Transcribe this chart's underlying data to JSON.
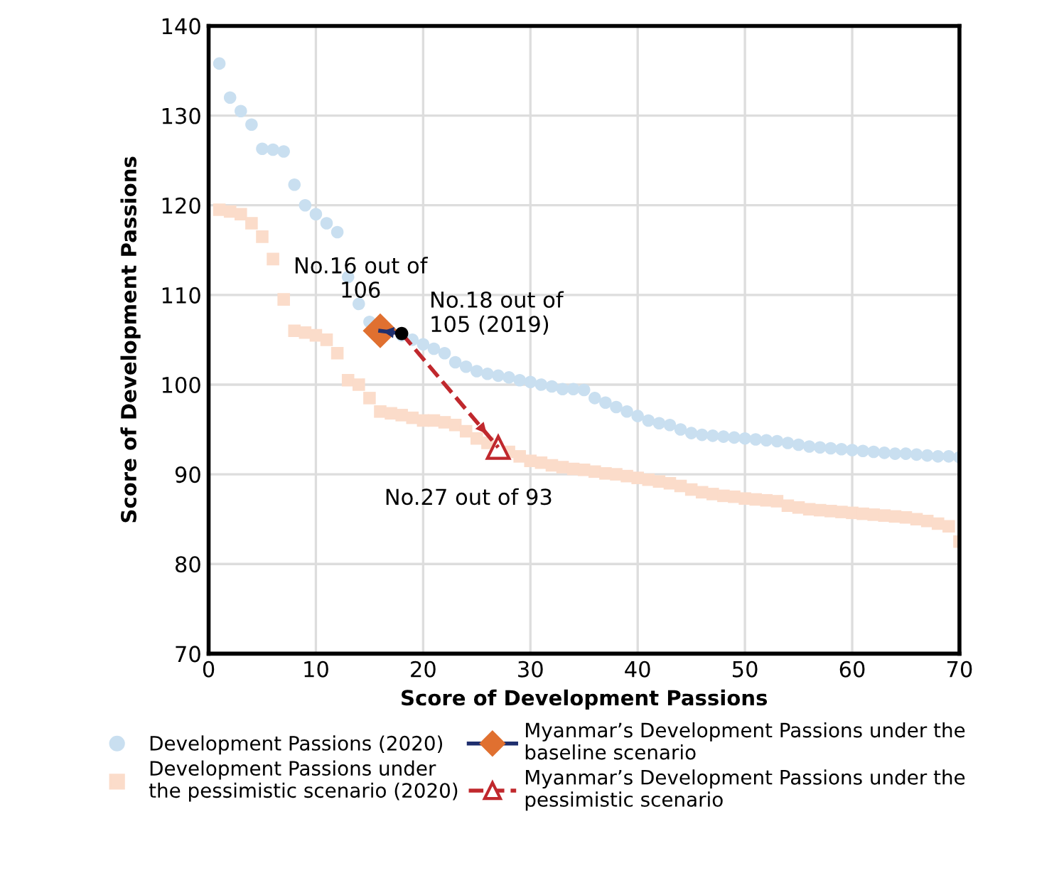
{
  "chart_data": {
    "type": "scatter",
    "xlabel": "Score of Development Passions",
    "ylabel": "Score of Development Passions",
    "xlim": [
      0,
      70
    ],
    "xticks": [
      0,
      10,
      20,
      30,
      40,
      50,
      60,
      70
    ],
    "ylim": [
      70,
      140
    ],
    "yticks": [
      70,
      80,
      90,
      100,
      110,
      120,
      130,
      140
    ],
    "grid": true,
    "legend": "bottom",
    "series": [
      {
        "name": "Development Passions (2020)",
        "marker": "circle",
        "color": "#c9dff0",
        "x": [
          1,
          2,
          3,
          4,
          5,
          6,
          7,
          8,
          9,
          10,
          11,
          12,
          13,
          14,
          15,
          16,
          17,
          18,
          19,
          20,
          21,
          22,
          23,
          24,
          25,
          26,
          27,
          28,
          29,
          30,
          31,
          32,
          33,
          34,
          35,
          36,
          37,
          38,
          39,
          40,
          41,
          42,
          43,
          44,
          45,
          46,
          47,
          48,
          49,
          50,
          51,
          52,
          53,
          54,
          55,
          56,
          57,
          58,
          59,
          60,
          61,
          62,
          63,
          64,
          65,
          66,
          67,
          68,
          69,
          70
        ],
        "values": [
          135.8,
          132,
          130.5,
          129,
          126.3,
          126.2,
          126,
          122.3,
          120,
          119,
          118,
          117,
          112,
          109,
          107,
          null,
          null,
          105.5,
          105,
          104.5,
          104,
          103.5,
          102.5,
          102,
          101.5,
          101.2,
          101,
          100.8,
          100.5,
          100.3,
          100,
          99.8,
          99.5,
          99.5,
          99.4,
          98.5,
          98,
          97.5,
          97,
          96.5,
          96,
          95.7,
          95.5,
          95,
          94.6,
          94.4,
          94.3,
          94.2,
          94.1,
          94,
          93.9,
          93.8,
          93.7,
          93.5,
          93.3,
          93.1,
          93,
          92.9,
          92.8,
          92.7,
          92.6,
          92.5,
          92.4,
          92.3,
          92.3,
          92.2,
          92.1,
          92,
          92,
          91.9
        ]
      },
      {
        "name": "Development Passions under\nthe pessimistic scenario (2020)",
        "marker": "square",
        "color": "#fbdcca",
        "x": [
          1,
          2,
          3,
          4,
          5,
          6,
          7,
          8,
          9,
          10,
          11,
          12,
          13,
          14,
          15,
          16,
          17,
          18,
          19,
          20,
          21,
          22,
          23,
          24,
          25,
          26,
          27,
          28,
          29,
          30,
          31,
          32,
          33,
          34,
          35,
          36,
          37,
          38,
          39,
          40,
          41,
          42,
          43,
          44,
          45,
          46,
          47,
          48,
          49,
          50,
          51,
          52,
          53,
          54,
          55,
          56,
          57,
          58,
          59,
          60,
          61,
          62,
          63,
          64,
          65,
          66,
          67,
          68,
          69,
          70
        ],
        "values": [
          119.5,
          119.3,
          119,
          118,
          116.5,
          114,
          109.5,
          106,
          105.8,
          105.5,
          105,
          103.5,
          100.5,
          100,
          98.5,
          97,
          96.8,
          96.6,
          96.3,
          96,
          96,
          95.8,
          95.5,
          94.8,
          94,
          93.5,
          null,
          92.5,
          92,
          91.5,
          91.3,
          91,
          90.8,
          90.6,
          90.5,
          90.3,
          90.1,
          90,
          89.8,
          89.6,
          89.4,
          89.2,
          89,
          88.7,
          88.3,
          88,
          87.8,
          87.6,
          87.5,
          87.3,
          87.2,
          87.1,
          87,
          86.5,
          86.3,
          86.1,
          86,
          85.9,
          85.8,
          85.7,
          85.6,
          85.5,
          85.4,
          85.3,
          85.2,
          85,
          84.8,
          84.5,
          84.2,
          82.5
        ]
      },
      {
        "name": "Myanmar’s Development Passions under the\nbaseline scenario",
        "type": "line",
        "marker": "diamond",
        "line_style": "solid",
        "color": "#1f2f6e",
        "x": [
          18,
          16
        ],
        "values": [
          105.7,
          106
        ]
      },
      {
        "name": "Myanmar’s Development Passions under the\npessimistic scenario",
        "type": "line",
        "marker": "triangle",
        "line_style": "dashed",
        "color": "#c0282d",
        "x": [
          18,
          27
        ],
        "values": [
          105.7,
          93
        ]
      },
      {
        "marker": "circle",
        "color": "#000000",
        "x": [
          18
        ],
        "values": [
          105.7
        ]
      }
    ],
    "annotations": [
      {
        "text": "No.16 out of\n106",
        "x": 16,
        "y": 106
      },
      {
        "text": "No.18 out of\n105 (2019)",
        "x": 18,
        "y": 105.7
      },
      {
        "text": "No.27 out of 93",
        "x": 27,
        "y": 93
      }
    ]
  }
}
